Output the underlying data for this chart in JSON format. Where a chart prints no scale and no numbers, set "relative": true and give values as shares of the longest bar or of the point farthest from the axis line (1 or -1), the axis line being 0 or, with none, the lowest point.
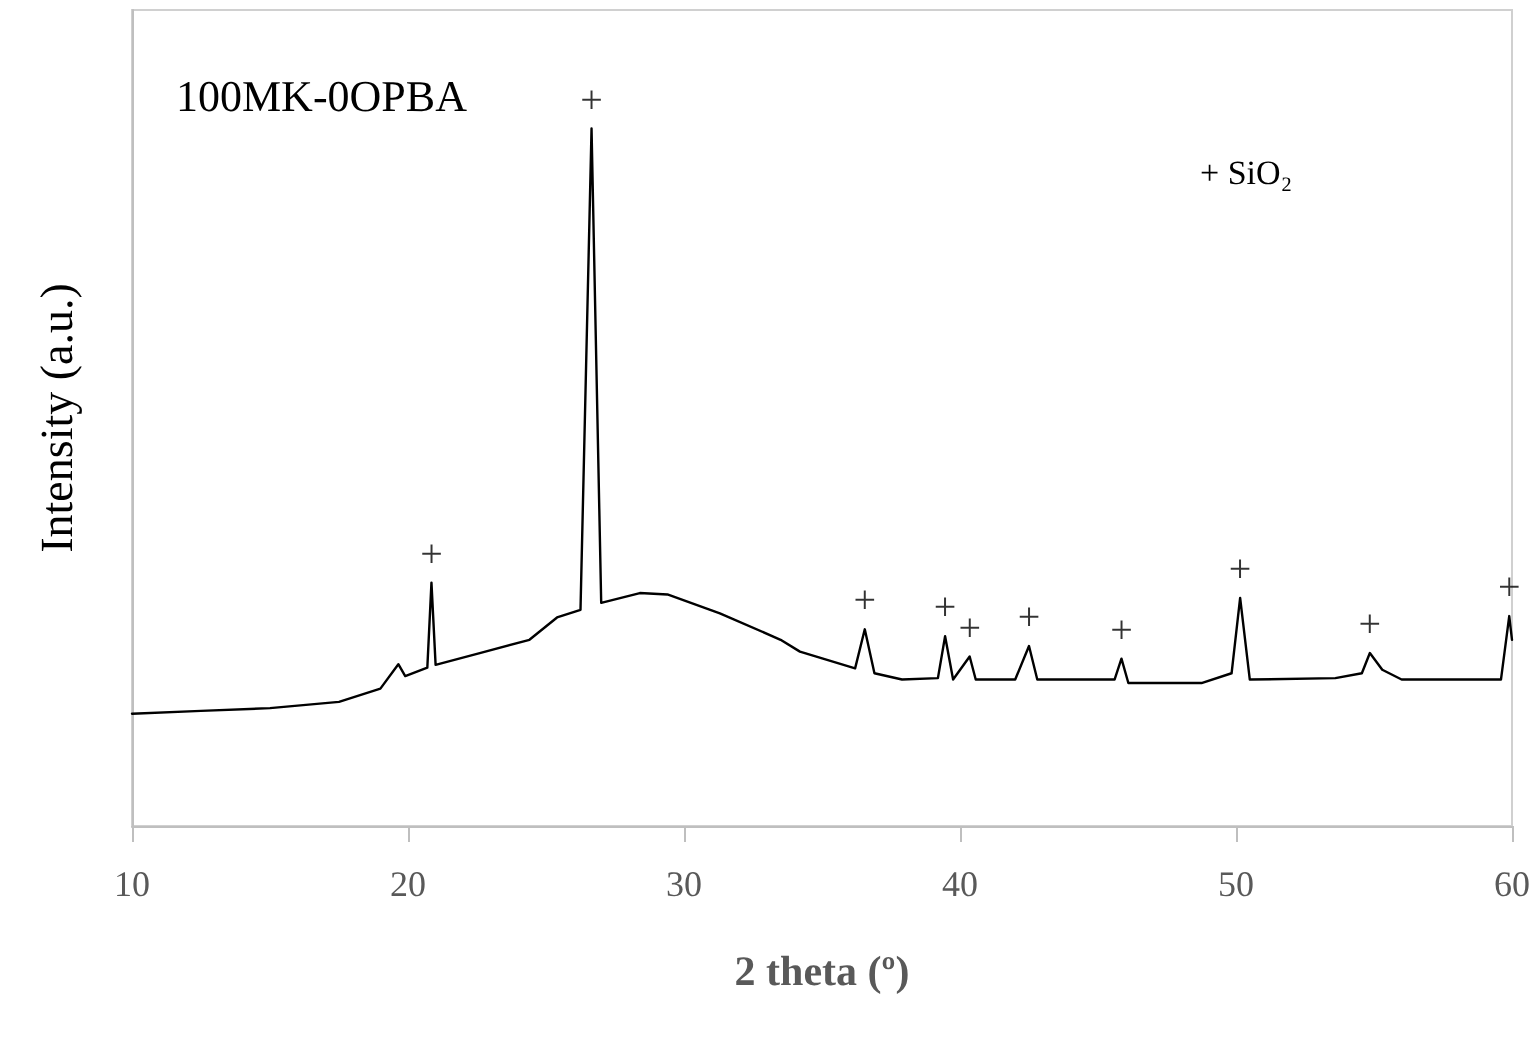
{
  "chart_data": {
    "type": "line",
    "relative": true,
    "xlabel": "2 theta (º)",
    "ylabel": "Intensity (a.u.)",
    "xlim": [
      10,
      60
    ],
    "xticks": [
      10,
      20,
      30,
      40,
      50,
      60
    ],
    "grid": false,
    "marker": "none",
    "line_style": "solid",
    "annotations": [
      "100MK-0OPBA",
      "+ SiO₂",
      {
        "text": "+",
        "x": 20.85,
        "y": 0.349
      },
      {
        "text": "+",
        "x": 26.65,
        "y": 1.0
      },
      {
        "text": "+",
        "x": 36.55,
        "y": 0.282
      },
      {
        "text": "+",
        "x": 39.46,
        "y": 0.272
      },
      {
        "text": "+",
        "x": 40.35,
        "y": 0.243
      },
      {
        "text": "+",
        "x": 42.5,
        "y": 0.258
      },
      {
        "text": "+",
        "x": 45.85,
        "y": 0.24
      },
      {
        "text": "+",
        "x": 50.15,
        "y": 0.327
      },
      {
        "text": "+",
        "x": 54.85,
        "y": 0.248
      },
      {
        "text": "+",
        "x": 59.9,
        "y": 0.301
      }
    ],
    "series": [
      {
        "color": "#000000",
        "x": [
          10,
          12.5,
          15,
          17.5,
          19.0,
          19.65,
          19.9,
          20.7,
          20.85,
          21.0,
          22.6,
          24.4,
          25.4,
          26.25,
          26.65,
          27.0,
          28.4,
          29.4,
          31.3,
          33.5,
          34.2,
          36.2,
          36.55,
          36.9,
          37.9,
          39.2,
          39.46,
          39.75,
          40.35,
          40.57,
          42.0,
          42.5,
          42.8,
          45.6,
          45.85,
          46.1,
          48.75,
          49.84,
          50.15,
          50.5,
          53.6,
          54.56,
          54.85,
          55.3,
          56.0,
          59.6,
          59.9,
          60.0
        ],
        "values": [
          0.161,
          0.165,
          0.169,
          0.178,
          0.197,
          0.232,
          0.215,
          0.227,
          0.349,
          0.231,
          0.248,
          0.267,
          0.299,
          0.31,
          1.0,
          0.32,
          0.334,
          0.332,
          0.305,
          0.267,
          0.25,
          0.226,
          0.282,
          0.219,
          0.21,
          0.212,
          0.272,
          0.21,
          0.243,
          0.21,
          0.21,
          0.258,
          0.21,
          0.21,
          0.24,
          0.205,
          0.205,
          0.219,
          0.327,
          0.21,
          0.212,
          0.219,
          0.248,
          0.224,
          0.21,
          0.21,
          0.301,
          0.267
        ]
      }
    ]
  }
}
